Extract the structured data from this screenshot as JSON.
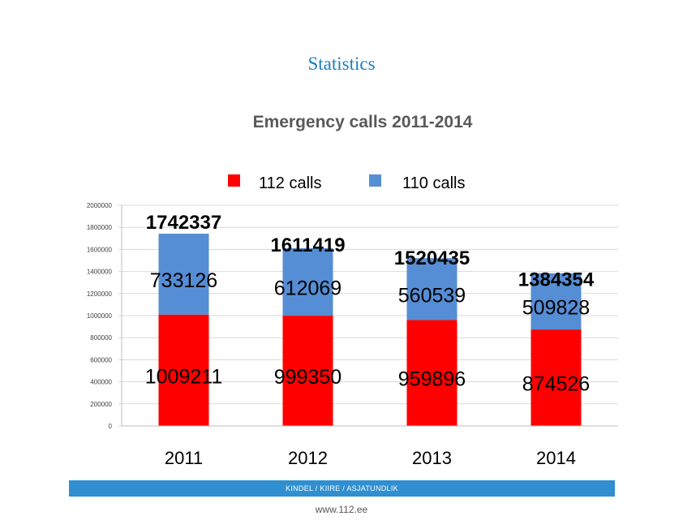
{
  "page": {
    "title": "Statistics"
  },
  "chart_data": {
    "type": "bar",
    "stacked": true,
    "title": "Emergency calls 2011-2014",
    "categories": [
      "2011",
      "2012",
      "2013",
      "2014"
    ],
    "series": [
      {
        "name": "112 calls",
        "color": "#ff0000",
        "values": [
          1009211,
          999350,
          959896,
          874526
        ]
      },
      {
        "name": "110 calls",
        "color": "#558ed5",
        "values": [
          733126,
          612069,
          560539,
          509828
        ]
      }
    ],
    "totals": [
      1742337,
      1611419,
      1520435,
      1384354
    ],
    "ylim": [
      0,
      2000000
    ],
    "yticks": [
      0,
      200000,
      400000,
      600000,
      800000,
      1000000,
      1200000,
      1400000,
      1600000,
      1800000,
      2000000
    ],
    "grid": true,
    "legend": "top",
    "xlabel": "",
    "ylabel": ""
  },
  "footer": {
    "slogan": "KINDEL / KIIRE / ASJATUNDLIK",
    "url": "www.112.ee"
  }
}
